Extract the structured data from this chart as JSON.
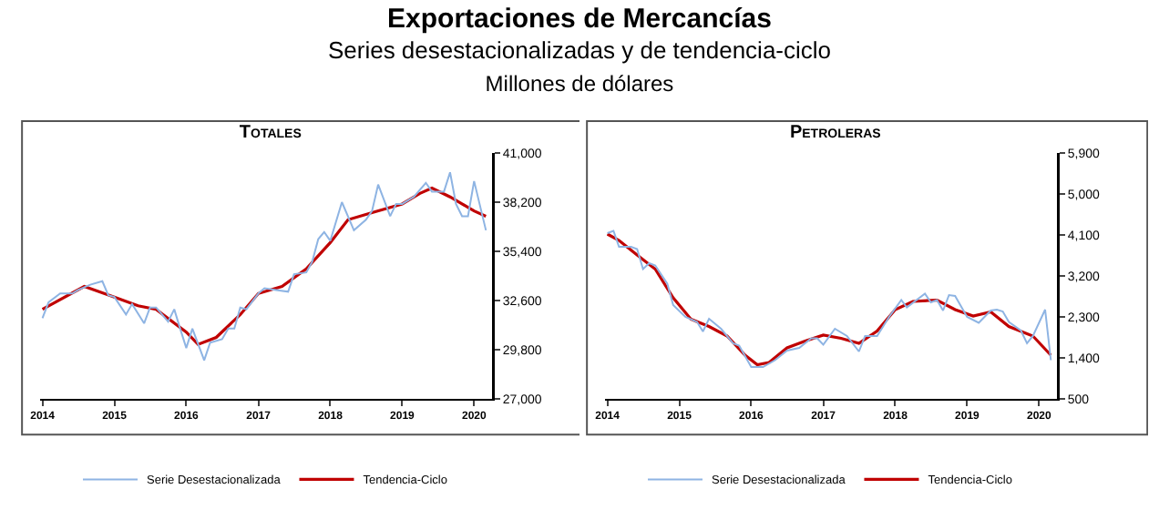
{
  "chart_data": [
    {
      "type": "line",
      "title": "Totales",
      "annotations": [
        "Exportaciones de Mercancías",
        "Series desestacionalizadas y de tendencia-ciclo",
        "Millones de dólares"
      ],
      "xlim": [
        "2013-12-20",
        "2020-04-01"
      ],
      "xticks": [
        {
          "value": "2014-01",
          "label": "2014"
        },
        {
          "value": "2015-01",
          "label": "2015"
        },
        {
          "value": "2016-01",
          "label": "2016"
        },
        {
          "value": "2017-01",
          "label": "2017"
        },
        {
          "value": "2018-01",
          "label": "2018"
        },
        {
          "value": "2019-01",
          "label": "2019"
        },
        {
          "value": "2020-01",
          "label": "2020"
        }
      ],
      "ylim": [
        27000,
        41000
      ],
      "yticks": [
        {
          "value": 27000,
          "label": "27,000"
        },
        {
          "value": 29800,
          "label": "29,800"
        },
        {
          "value": 32600,
          "label": "32,600"
        },
        {
          "value": 35400,
          "label": "35,400"
        },
        {
          "value": 38200,
          "label": "38,200"
        },
        {
          "value": 41000,
          "label": "41,000"
        }
      ],
      "grid": false,
      "legend": "bottom",
      "series": [
        {
          "name": "Serie Desestacionalizada",
          "color": "#8eb4e3",
          "x": [
            "2014-01",
            "2014-02",
            "2014-04",
            "2014-06",
            "2014-07",
            "2014-09",
            "2014-11",
            "2014-12",
            "2015-01",
            "2015-03",
            "2015-04",
            "2015-06",
            "2015-07",
            "2015-08",
            "2015-10",
            "2015-11",
            "2015-12",
            "2016-01",
            "2016-02",
            "2016-04",
            "2016-05",
            "2016-07",
            "2016-08",
            "2016-09",
            "2016-10",
            "2016-11",
            "2017-01",
            "2017-02",
            "2017-04",
            "2017-06",
            "2017-07",
            "2017-09",
            "2017-10",
            "2017-11",
            "2017-12",
            "2018-01",
            "2018-03",
            "2018-05",
            "2018-07",
            "2018-08",
            "2018-09",
            "2018-11",
            "2018-12",
            "2019-01",
            "2019-03",
            "2019-05",
            "2019-06",
            "2019-08",
            "2019-09",
            "2019-10",
            "2019-11",
            "2019-12",
            "2020-01",
            "2020-03"
          ],
          "values": [
            31600,
            32500,
            33000,
            33000,
            33200,
            33500,
            33700,
            32900,
            32800,
            31800,
            32400,
            31300,
            32200,
            32200,
            31400,
            32100,
            31000,
            29900,
            31000,
            29200,
            30200,
            30400,
            31000,
            31000,
            32200,
            32100,
            33000,
            33300,
            33200,
            33100,
            34100,
            34200,
            34800,
            36100,
            36500,
            36000,
            38200,
            36600,
            37200,
            37700,
            39200,
            37400,
            38100,
            38100,
            38500,
            39300,
            38800,
            38800,
            39900,
            38100,
            37400,
            37400,
            39400,
            36600
          ]
        },
        {
          "name": "Tendencia-Ciclo",
          "color": "#c00000",
          "x": [
            "2014-01",
            "2014-08",
            "2015-01",
            "2015-05",
            "2015-08",
            "2016-01",
            "2016-03",
            "2016-06",
            "2016-10",
            "2017-01",
            "2017-05",
            "2017-09",
            "2018-01",
            "2018-04",
            "2018-08",
            "2019-01",
            "2019-04",
            "2019-06",
            "2019-09",
            "2020-01",
            "2020-03"
          ],
          "values": [
            32100,
            33400,
            32800,
            32300,
            32100,
            30800,
            30100,
            30500,
            31800,
            33000,
            33400,
            34400,
            35900,
            37200,
            37600,
            38100,
            38700,
            39000,
            38500,
            37700,
            37400
          ]
        }
      ]
    },
    {
      "type": "line",
      "title": "Petroleras",
      "xlim": [
        "2013-12-20",
        "2020-04-01"
      ],
      "xticks": [
        {
          "value": "2014-01",
          "label": "2014"
        },
        {
          "value": "2015-01",
          "label": "2015"
        },
        {
          "value": "2016-01",
          "label": "2016"
        },
        {
          "value": "2017-01",
          "label": "2017"
        },
        {
          "value": "2018-01",
          "label": "2018"
        },
        {
          "value": "2019-01",
          "label": "2019"
        },
        {
          "value": "2020-01",
          "label": "2020"
        }
      ],
      "ylim": [
        500,
        5900
      ],
      "yticks": [
        {
          "value": 500,
          "label": "500"
        },
        {
          "value": 1400,
          "label": "1,400"
        },
        {
          "value": 2300,
          "label": "2,300"
        },
        {
          "value": 3200,
          "label": "3,200"
        },
        {
          "value": 4100,
          "label": "4,100"
        },
        {
          "value": 5000,
          "label": "5,000"
        },
        {
          "value": 5900,
          "label": "5,900"
        }
      ],
      "grid": false,
      "legend": "bottom",
      "series": [
        {
          "name": "Serie Desestacionalizada",
          "color": "#8eb4e3",
          "x": [
            "2014-01",
            "2014-02",
            "2014-03",
            "2014-05",
            "2014-06",
            "2014-07",
            "2014-08",
            "2014-09",
            "2014-11",
            "2014-12",
            "2015-02",
            "2015-04",
            "2015-05",
            "2015-06",
            "2015-08",
            "2015-10",
            "2015-11",
            "2016-01",
            "2016-03",
            "2016-05",
            "2016-07",
            "2016-09",
            "2016-11",
            "2016-12",
            "2017-01",
            "2017-03",
            "2017-05",
            "2017-07",
            "2017-08",
            "2017-10",
            "2017-12",
            "2018-02",
            "2018-03",
            "2018-06",
            "2018-07",
            "2018-08",
            "2018-09",
            "2018-10",
            "2018-11",
            "2019-01",
            "2019-03",
            "2019-05",
            "2019-06",
            "2019-07",
            "2019-08",
            "2019-10",
            "2019-11",
            "2019-12",
            "2020-02",
            "2020-03"
          ],
          "values": [
            4140,
            4190,
            3840,
            3840,
            3790,
            3350,
            3480,
            3430,
            3030,
            2560,
            2300,
            2190,
            1980,
            2260,
            2040,
            1720,
            1670,
            1200,
            1200,
            1350,
            1560,
            1620,
            1830,
            1830,
            1690,
            2040,
            1880,
            1540,
            1880,
            1880,
            2300,
            2670,
            2510,
            2810,
            2620,
            2670,
            2440,
            2780,
            2760,
            2300,
            2170,
            2440,
            2460,
            2420,
            2190,
            2000,
            1720,
            1880,
            2460,
            1350
          ]
        },
        {
          "name": "Tendencia-Ciclo",
          "color": "#c00000",
          "x": [
            "2014-01",
            "2014-03",
            "2014-06",
            "2014-09",
            "2014-12",
            "2015-03",
            "2015-06",
            "2015-09",
            "2015-12",
            "2016-02",
            "2016-04",
            "2016-07",
            "2016-10",
            "2017-01",
            "2017-04",
            "2017-07",
            "2017-10",
            "2018-01",
            "2018-04",
            "2018-08",
            "2018-11",
            "2019-02",
            "2019-05",
            "2019-08",
            "2019-12",
            "2020-03"
          ],
          "values": [
            4120,
            3980,
            3660,
            3350,
            2720,
            2250,
            2090,
            1880,
            1460,
            1250,
            1300,
            1620,
            1770,
            1900,
            1830,
            1720,
            1990,
            2460,
            2640,
            2670,
            2460,
            2320,
            2410,
            2090,
            1880,
            1460
          ]
        }
      ]
    }
  ]
}
